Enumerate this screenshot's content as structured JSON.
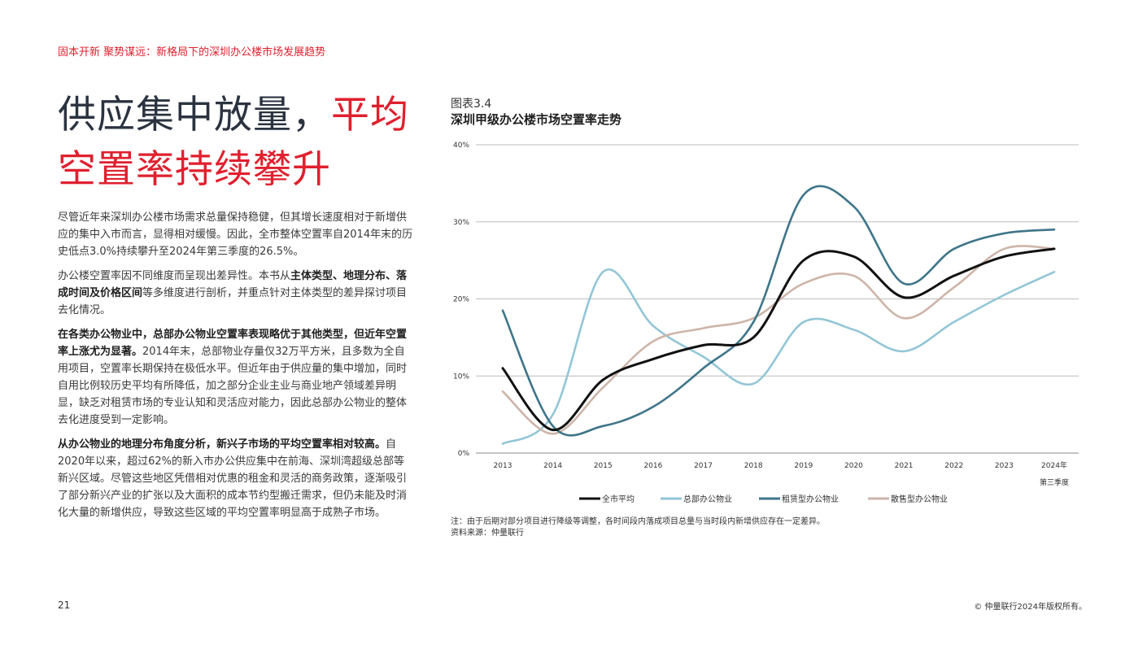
{
  "header": "固本开新 聚势谋远：新格局下的深圳办公楼市场发展趋势",
  "headline": {
    "part1": "供应集中放量，",
    "part2": "平均",
    "line2": "空置率持续攀升"
  },
  "paragraphs": {
    "p1": "尽管近年来深圳办公楼市场需求总量保持稳健，但其增长速度相对于新增供应的集中入市而言，显得相对缓慢。因此，全市整体空置率自2014年末的历史低点3.0%持续攀升至2024年第三季度的26.5%。",
    "p2_a": "办公楼空置率因不同维度而呈现出差异性。本书从",
    "p2_b": "主体类型、地理分布、落成时间及价格区间",
    "p2_c": "等多维度进行剖析，并重点针对主体类型的差异探讨项目去化情况。",
    "p3_bold": "在各类办公物业中，总部办公物业空置率表现略优于其他类型，但近年空置率上涨尤为显著。",
    "p3_text": "2014年末，总部物业存量仅32万平方米，且多数为全自用项目，空置率长期保持在极低水平。但近年由于供应量的集中增加，同时自用比例较历史平均有所降低，加之部分企业主业与商业地产领域差异明显，缺乏对租赁市场的专业认知和灵活应对能力，因此总部办公物业的整体去化进度受到一定影响。",
    "p4_bold": "从办公物业的地理分布角度分析，新兴子市场的平均空置率相对较高。",
    "p4_text": "自2020年以来，超过62%的新入市办公供应集中在前海、深圳湾超级总部等新兴区域。尽管这些地区凭借相对优惠的租金和灵活的商务政策，逐渐吸引了部分新兴产业的扩张以及大面积的成本节约型搬迁需求，但仍未能及时消化大量的新增供应，导致这些区域的平均空置率明显高于成熟子市场。"
  },
  "figure": {
    "label": "图表3.4",
    "title": "深圳甲级办公楼市场空置率走势"
  },
  "chart_data": {
    "type": "line",
    "categories": [
      "2013",
      "2014",
      "2015",
      "2016",
      "2017",
      "2018",
      "2019",
      "2020",
      "2021",
      "2022",
      "2023",
      "2024年"
    ],
    "last_category_line2": "第三季度",
    "y_ticks": [
      "0%",
      "10%",
      "20%",
      "30%",
      "40%"
    ],
    "ylim": [
      0,
      40
    ],
    "grid": true,
    "legend_position": "bottom",
    "series": [
      {
        "name": "全市平均",
        "color": "#111111",
        "values": [
          11,
          3,
          9.5,
          12.2,
          14,
          15,
          25,
          25.5,
          20.2,
          23,
          25.5,
          26.5
        ]
      },
      {
        "name": "总部办公物业",
        "color": "#93c6d6",
        "values": [
          1.2,
          5,
          23.5,
          16.5,
          12.5,
          9,
          17,
          16,
          13.2,
          17,
          20.5,
          23.5
        ]
      },
      {
        "name": "租赁型办公物业",
        "color": "#3f7589",
        "values": [
          18.5,
          3.5,
          3.5,
          6,
          11,
          17,
          33.5,
          32,
          22,
          26.5,
          28.5,
          29
        ]
      },
      {
        "name": "散售型办公物业",
        "color": "#cdb5a9",
        "values": [
          8,
          2.5,
          8.5,
          14.5,
          16.2,
          17.5,
          22,
          23,
          17.5,
          21.5,
          26.5,
          26.5
        ]
      }
    ]
  },
  "note": "注：由于后期对部分项目进行降级等调整，各时间段内落成项目总量与当时段内新增供应存在一定差异。",
  "source": "资料来源：仲量联行",
  "page_number": "21",
  "copyright": "© 仲量联行2024年版权所有。"
}
